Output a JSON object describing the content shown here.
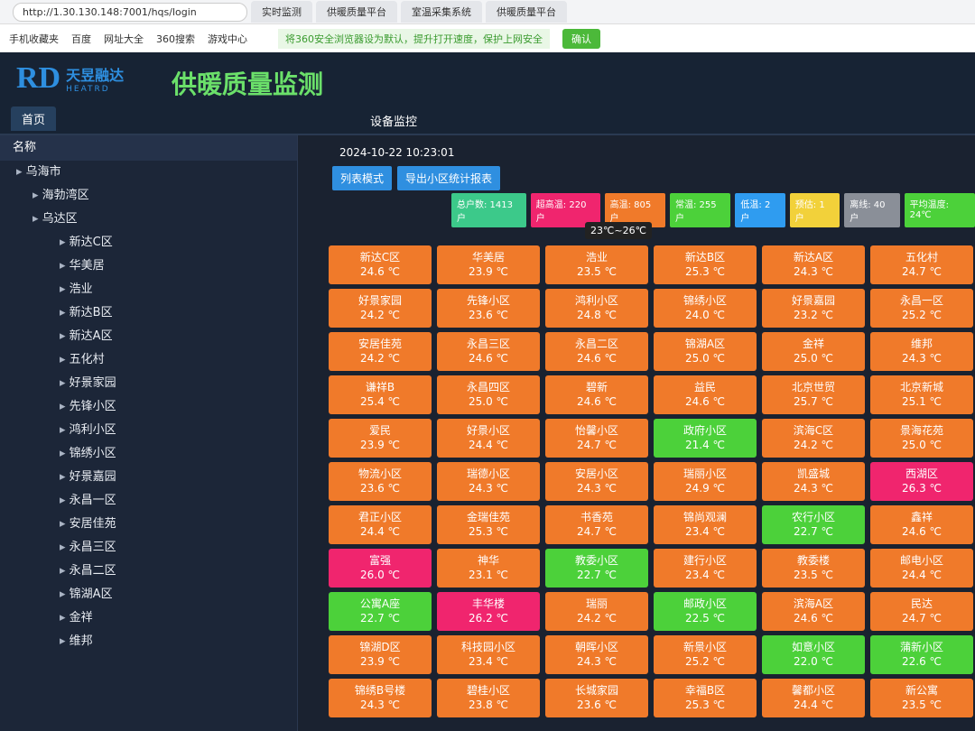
{
  "browser": {
    "url": "http://1.30.130.148:7001/hqs/login",
    "tabs": [
      "实时监测",
      "供暖质量平台",
      "室温采集系统",
      "供暖质量平台"
    ],
    "bookmarks": [
      "手机收藏夹",
      "百度",
      "网址大全",
      "360搜索",
      "游戏中心"
    ],
    "notice": "将360安全浏览器设为默认，提升打开速度，保护上网安全",
    "notice_button": "确认"
  },
  "header": {
    "logo_mark": "RD",
    "logo_cn": "天昱融达",
    "logo_en": "HEATRD",
    "title": "供暖质量监测",
    "home_tab": "首页",
    "menu": "设备监控"
  },
  "sidebar": {
    "column_title": "名称",
    "root": "乌海市",
    "districts": [
      "海勃湾区",
      "乌达区"
    ],
    "communities": [
      "新达C区",
      "华美居",
      "浩业",
      "新达B区",
      "新达A区",
      "五化村",
      "好景家园",
      "先锋小区",
      "鸿利小区",
      "锦绣小区",
      "好景嘉园",
      "永昌一区",
      "安居佳苑",
      "永昌三区",
      "永昌二区",
      "锦湖A区",
      "金祥",
      "维邦"
    ]
  },
  "toolbar": {
    "datetime": "2024-10-22 10:23:01",
    "buttons": [
      "列表模式",
      "导出小区统计报表"
    ],
    "badges": [
      {
        "label": "总户数: 1413 户",
        "color": "#3cc98a"
      },
      {
        "label": "超高温: 220 户",
        "color": "#f0256e"
      },
      {
        "label": "高温: 805 户",
        "color": "#f07a2a"
      },
      {
        "label": "常温: 255 户",
        "color": "#4cd13a"
      },
      {
        "label": "低温: 2 户",
        "color": "#2f9cf0"
      },
      {
        "label": "预估: 1 户",
        "color": "#f2d13a"
      },
      {
        "label": "离线: 40 户",
        "color": "#8a8f98"
      },
      {
        "label": "平均温度: 24℃",
        "color": "#4cd13a"
      }
    ],
    "tooltip": "23℃~26℃"
  },
  "grid": {
    "columns": [
      [
        {
          "name": "新达C区",
          "temp": "24.6 ℃",
          "color": "#f07a2a"
        },
        {
          "name": "好景家园",
          "temp": "24.2 ℃",
          "color": "#f07a2a"
        },
        {
          "name": "安居佳苑",
          "temp": "24.2 ℃",
          "color": "#f07a2a"
        },
        {
          "name": "谦祥B",
          "temp": "25.4 ℃",
          "color": "#f07a2a"
        },
        {
          "name": "爱民",
          "temp": "23.9 ℃",
          "color": "#f07a2a"
        },
        {
          "name": "物流小区",
          "temp": "23.6 ℃",
          "color": "#f07a2a"
        },
        {
          "name": "君正小区",
          "temp": "24.4 ℃",
          "color": "#f07a2a"
        },
        {
          "name": "富强",
          "temp": "26.0 ℃",
          "color": "#f0256e"
        },
        {
          "name": "公寓A座",
          "temp": "22.7 ℃",
          "color": "#4cd13a"
        },
        {
          "name": "锦湖D区",
          "temp": "23.9 ℃",
          "color": "#f07a2a"
        },
        {
          "name": "锦绣B号楼",
          "temp": "24.3 ℃",
          "color": "#f07a2a"
        }
      ],
      [
        {
          "name": "华美居",
          "temp": "23.9 ℃",
          "color": "#f07a2a"
        },
        {
          "name": "先锋小区",
          "temp": "23.6 ℃",
          "color": "#f07a2a"
        },
        {
          "name": "永昌三区",
          "temp": "24.6 ℃",
          "color": "#f07a2a"
        },
        {
          "name": "永昌四区",
          "temp": "25.0 ℃",
          "color": "#f07a2a"
        },
        {
          "name": "好景小区",
          "temp": "24.4 ℃",
          "color": "#f07a2a"
        },
        {
          "name": "瑞德小区",
          "temp": "24.3 ℃",
          "color": "#f07a2a"
        },
        {
          "name": "金瑞佳苑",
          "temp": "25.3 ℃",
          "color": "#f07a2a"
        },
        {
          "name": "神华",
          "temp": "23.1 ℃",
          "color": "#f07a2a"
        },
        {
          "name": "丰华楼",
          "temp": "26.2 ℃",
          "color": "#f0256e"
        },
        {
          "name": "科技园小区",
          "temp": "23.4 ℃",
          "color": "#f07a2a"
        },
        {
          "name": "碧桂小区",
          "temp": "23.8 ℃",
          "color": "#f07a2a"
        }
      ],
      [
        {
          "name": "浩业",
          "temp": "23.5 ℃",
          "color": "#f07a2a"
        },
        {
          "name": "鸿利小区",
          "temp": "24.8 ℃",
          "color": "#f07a2a"
        },
        {
          "name": "永昌二区",
          "temp": "24.6 ℃",
          "color": "#f07a2a"
        },
        {
          "name": "碧新",
          "temp": "24.6 ℃",
          "color": "#f07a2a"
        },
        {
          "name": "怡馨小区",
          "temp": "24.7 ℃",
          "color": "#f07a2a"
        },
        {
          "name": "安居小区",
          "temp": "24.3 ℃",
          "color": "#f07a2a"
        },
        {
          "name": "书香苑",
          "temp": "24.7 ℃",
          "color": "#f07a2a"
        },
        {
          "name": "教委小区",
          "temp": "22.7 ℃",
          "color": "#4cd13a"
        },
        {
          "name": "瑞丽",
          "temp": "24.2 ℃",
          "color": "#f07a2a"
        },
        {
          "name": "朝晖小区",
          "temp": "24.3 ℃",
          "color": "#f07a2a"
        },
        {
          "name": "长城家园",
          "temp": "23.6 ℃",
          "color": "#f07a2a"
        }
      ],
      [
        {
          "name": "新达B区",
          "temp": "25.3 ℃",
          "color": "#f07a2a"
        },
        {
          "name": "锦绣小区",
          "temp": "24.0 ℃",
          "color": "#f07a2a"
        },
        {
          "name": "锦湖A区",
          "temp": "25.0 ℃",
          "color": "#f07a2a"
        },
        {
          "name": "益民",
          "temp": "24.6 ℃",
          "color": "#f07a2a"
        },
        {
          "name": "政府小区",
          "temp": "21.4 ℃",
          "color": "#4cd13a"
        },
        {
          "name": "瑞丽小区",
          "temp": "24.9 ℃",
          "color": "#f07a2a"
        },
        {
          "name": "锦尚观澜",
          "temp": "23.4 ℃",
          "color": "#f07a2a"
        },
        {
          "name": "建行小区",
          "temp": "23.4 ℃",
          "color": "#f07a2a"
        },
        {
          "name": "邮政小区",
          "temp": "22.5 ℃",
          "color": "#4cd13a"
        },
        {
          "name": "新景小区",
          "temp": "25.2 ℃",
          "color": "#f07a2a"
        },
        {
          "name": "幸福B区",
          "temp": "25.3 ℃",
          "color": "#f07a2a"
        }
      ],
      [
        {
          "name": "新达A区",
          "temp": "24.3 ℃",
          "color": "#f07a2a"
        },
        {
          "name": "好景嘉园",
          "temp": "23.2 ℃",
          "color": "#f07a2a"
        },
        {
          "name": "金祥",
          "temp": "25.0 ℃",
          "color": "#f07a2a"
        },
        {
          "name": "北京世贸",
          "temp": "25.7 ℃",
          "color": "#f07a2a"
        },
        {
          "name": "滨海C区",
          "temp": "24.2 ℃",
          "color": "#f07a2a"
        },
        {
          "name": "凯盛城",
          "temp": "24.3 ℃",
          "color": "#f07a2a"
        },
        {
          "name": "农行小区",
          "temp": "22.7 ℃",
          "color": "#4cd13a"
        },
        {
          "name": "教委楼",
          "temp": "23.5 ℃",
          "color": "#f07a2a"
        },
        {
          "name": "滨海A区",
          "temp": "24.6 ℃",
          "color": "#f07a2a"
        },
        {
          "name": "如意小区",
          "temp": "22.0 ℃",
          "color": "#4cd13a"
        },
        {
          "name": "馨都小区",
          "temp": "24.4 ℃",
          "color": "#f07a2a"
        }
      ],
      [
        {
          "name": "五化村",
          "temp": "24.7 ℃",
          "color": "#f07a2a"
        },
        {
          "name": "永昌一区",
          "temp": "25.2 ℃",
          "color": "#f07a2a"
        },
        {
          "name": "维邦",
          "temp": "24.3 ℃",
          "color": "#f07a2a"
        },
        {
          "name": "北京新城",
          "temp": "25.1 ℃",
          "color": "#f07a2a"
        },
        {
          "name": "景海花苑",
          "temp": "25.0 ℃",
          "color": "#f07a2a"
        },
        {
          "name": "西湖区",
          "temp": "26.3 ℃",
          "color": "#f0256e"
        },
        {
          "name": "鑫祥",
          "temp": "24.6 ℃",
          "color": "#f07a2a"
        },
        {
          "name": "邮电小区",
          "temp": "24.4 ℃",
          "color": "#f07a2a"
        },
        {
          "name": "民达",
          "temp": "24.7 ℃",
          "color": "#f07a2a"
        },
        {
          "name": "蒲新小区",
          "temp": "22.6 ℃",
          "color": "#4cd13a"
        },
        {
          "name": "新公寓",
          "temp": "23.5 ℃",
          "color": "#f07a2a"
        }
      ]
    ]
  }
}
